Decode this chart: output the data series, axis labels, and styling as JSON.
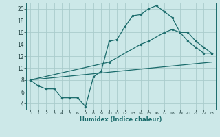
{
  "line1_x": [
    0,
    1,
    2,
    3,
    4,
    5,
    6,
    7,
    8,
    9,
    10,
    11,
    12,
    13,
    14,
    15,
    16,
    17,
    18,
    19,
    20,
    21,
    22,
    23
  ],
  "line1_y": [
    8,
    7,
    6.5,
    6.5,
    5,
    5,
    5,
    3.5,
    8.5,
    9.5,
    14.5,
    14.8,
    17,
    18.8,
    19,
    20,
    20.5,
    19.5,
    18.5,
    16,
    14.5,
    13.5,
    12.5,
    12.5
  ],
  "line2_x": [
    0,
    23
  ],
  "line2_y": [
    8,
    11.0
  ],
  "line3_x": [
    0,
    10,
    14,
    15,
    17,
    18,
    19,
    20,
    21,
    22,
    23
  ],
  "line3_y": [
    8,
    11,
    14,
    14.5,
    16,
    16.5,
    16,
    16,
    14.5,
    13.5,
    12.5
  ],
  "bg_color": "#cce8e8",
  "line_color": "#1a6b6b",
  "grid_color": "#aacccc",
  "xlabel": "Humidex (Indice chaleur)",
  "xlim": [
    -0.5,
    23.5
  ],
  "ylim": [
    3.0,
    21.0
  ],
  "yticks": [
    4,
    6,
    8,
    10,
    12,
    14,
    16,
    18,
    20
  ],
  "xticks": [
    0,
    1,
    2,
    3,
    4,
    5,
    6,
    7,
    8,
    9,
    10,
    11,
    12,
    13,
    14,
    15,
    16,
    17,
    18,
    19,
    20,
    21,
    22,
    23
  ],
  "marker_size": 2.0,
  "line_width": 0.9
}
